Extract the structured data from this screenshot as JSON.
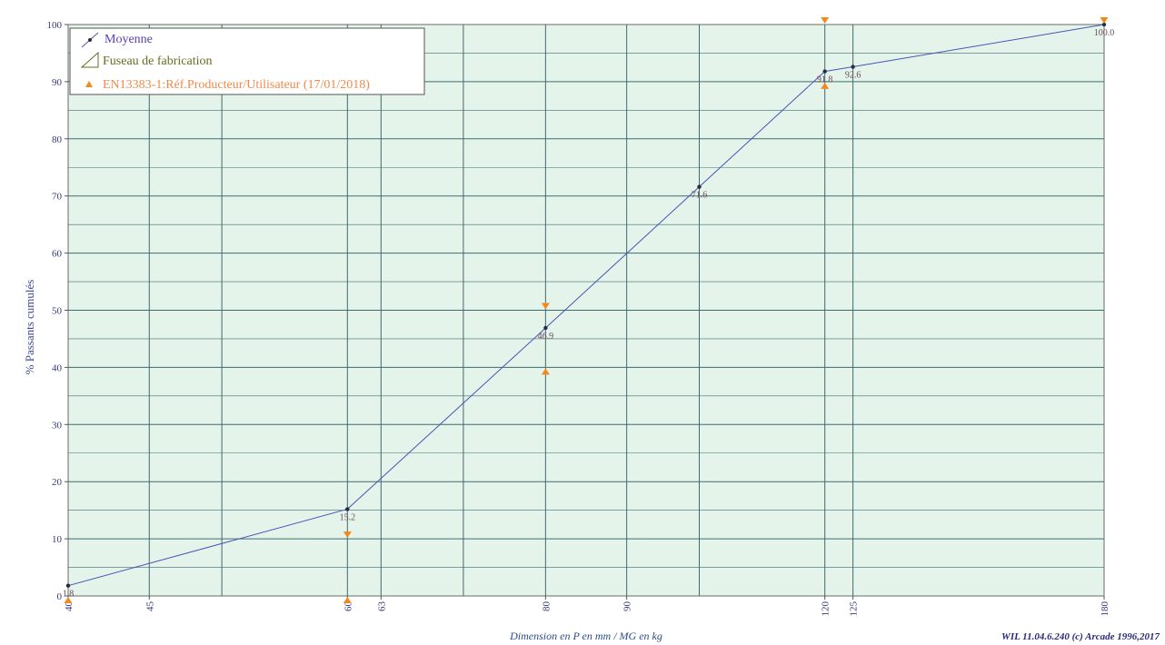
{
  "chart_data": {
    "type": "line",
    "ylabel": "% Passants cumulés",
    "xlabel": "Dimension en P en mm / MG en kg",
    "footer": "WIL 11.04.6.240 (c) Arcade 1996,2017",
    "ylim": [
      0,
      100
    ],
    "y_ticks": [
      0,
      10,
      20,
      30,
      40,
      50,
      60,
      70,
      80,
      90,
      100
    ],
    "x_ticks": [
      40,
      45,
      60,
      63,
      80,
      90,
      120,
      125,
      180
    ],
    "x_gridlines": [
      40,
      45,
      50,
      60,
      63,
      71,
      80,
      90,
      100,
      120,
      125,
      180
    ],
    "x_scale": "log",
    "xlim": [
      40,
      180
    ],
    "grid": true,
    "legend_position": "top-left",
    "colors": {
      "plot_bg": "#e4f4ea",
      "grid": "#3f6b6e",
      "series": "#4a55b5",
      "marker": "#2a2a44",
      "spec": "#f08a1e",
      "legend_moyenne": "#5a3fa8",
      "legend_fuseau": "#6b6b1f",
      "legend_spec": "#f08a4a"
    },
    "series": [
      {
        "name": "Moyenne",
        "x": [
          40,
          60,
          80,
          100,
          120,
          125,
          180
        ],
        "y": [
          1.8,
          15.2,
          46.9,
          71.6,
          91.8,
          92.6,
          100.0
        ],
        "labels": [
          "1.8",
          "15.2",
          "46.9",
          "71.6",
          "91.8",
          "92.6",
          "100.0"
        ]
      }
    ],
    "legend": [
      {
        "label": "Moyenne",
        "symbol": "line-marker"
      },
      {
        "label": "Fuseau de fabrication",
        "symbol": "triangle-outline"
      },
      {
        "label": "EN13383-1:Réf.Producteur/Utilisateur (17/01/2018)",
        "symbol": "triangle-filled"
      }
    ],
    "spec_upper": {
      "x": [
        60,
        80,
        120,
        180
      ],
      "y": [
        10,
        50,
        100,
        100
      ]
    },
    "spec_lower": {
      "x": [
        40,
        60,
        80,
        120
      ],
      "y": [
        0,
        0,
        40,
        90
      ]
    }
  }
}
